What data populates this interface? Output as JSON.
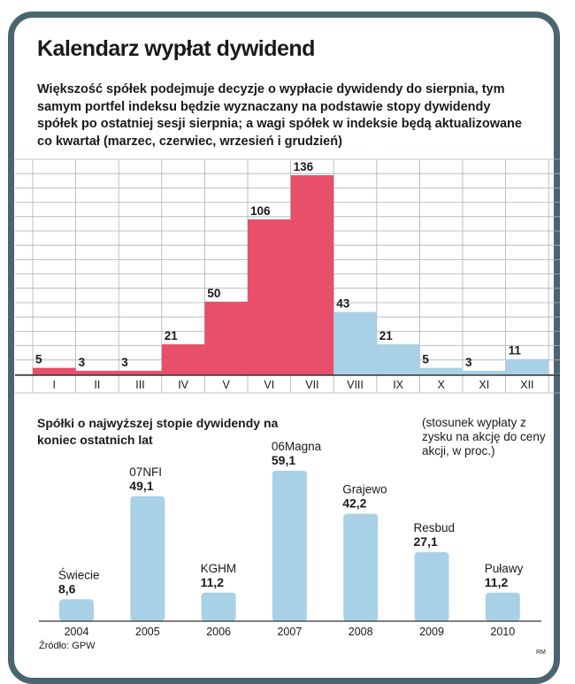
{
  "title": "Kalendarz wypłat dywidend",
  "subtitle": "Większość spółek podejmuje decyzje o wypłacie dywidendy do sierpnia, tym samym portfel indeksu będzie wyznaczany na podstawie stopy dywidendy spółek po ostatniej sesji sierpnia; a wagi spółek w indeksie będą aktualizowane co kwartał (marzec, czerwiec, wrzesień i grudzień)",
  "bottom_heading": "Spółki o najwyższej stopie dywidendy na koniec ostatnich lat",
  "bottom_note": "(stosunek wypłaty z zysku na akcję do ceny akcji, w proc.)",
  "source": "Źródło: GPW",
  "credit": "RM",
  "colors": {
    "pink": "#e8506a",
    "blue": "#a9d1e6",
    "frame": "#4a6470",
    "grid": "#a8b2b8"
  },
  "chart_data": [
    {
      "type": "bar",
      "categories": [
        "I",
        "II",
        "III",
        "IV",
        "V",
        "VI",
        "VII",
        "VIII",
        "IX",
        "X",
        "XI",
        "XII"
      ],
      "values": [
        5,
        3,
        3,
        21,
        50,
        106,
        136,
        43,
        21,
        5,
        3,
        11
      ],
      "labels": [
        "5",
        "3",
        "3",
        "21",
        "50",
        "106",
        "136",
        "43",
        "21",
        "5",
        "3",
        "11"
      ],
      "bar_colors": [
        "pink",
        "pink",
        "pink",
        "pink",
        "pink",
        "pink",
        "pink",
        "blue",
        "blue",
        "blue",
        "blue",
        "blue"
      ],
      "grid": true
    },
    {
      "type": "bar",
      "categories": [
        "2004",
        "2005",
        "2006",
        "2007",
        "2008",
        "2009",
        "2010"
      ],
      "companies": [
        "Świecie",
        "07NFI",
        "KGHM",
        "06Magna",
        "Grajewo",
        "Resbud",
        "Puławy"
      ],
      "values": [
        8.6,
        49.1,
        11.2,
        59.1,
        42.2,
        27.1,
        11.2
      ],
      "labels": [
        "8,6",
        "49,1",
        "11,2",
        "59,1",
        "42,2",
        "27,1",
        "11,2"
      ],
      "grid": false
    }
  ]
}
